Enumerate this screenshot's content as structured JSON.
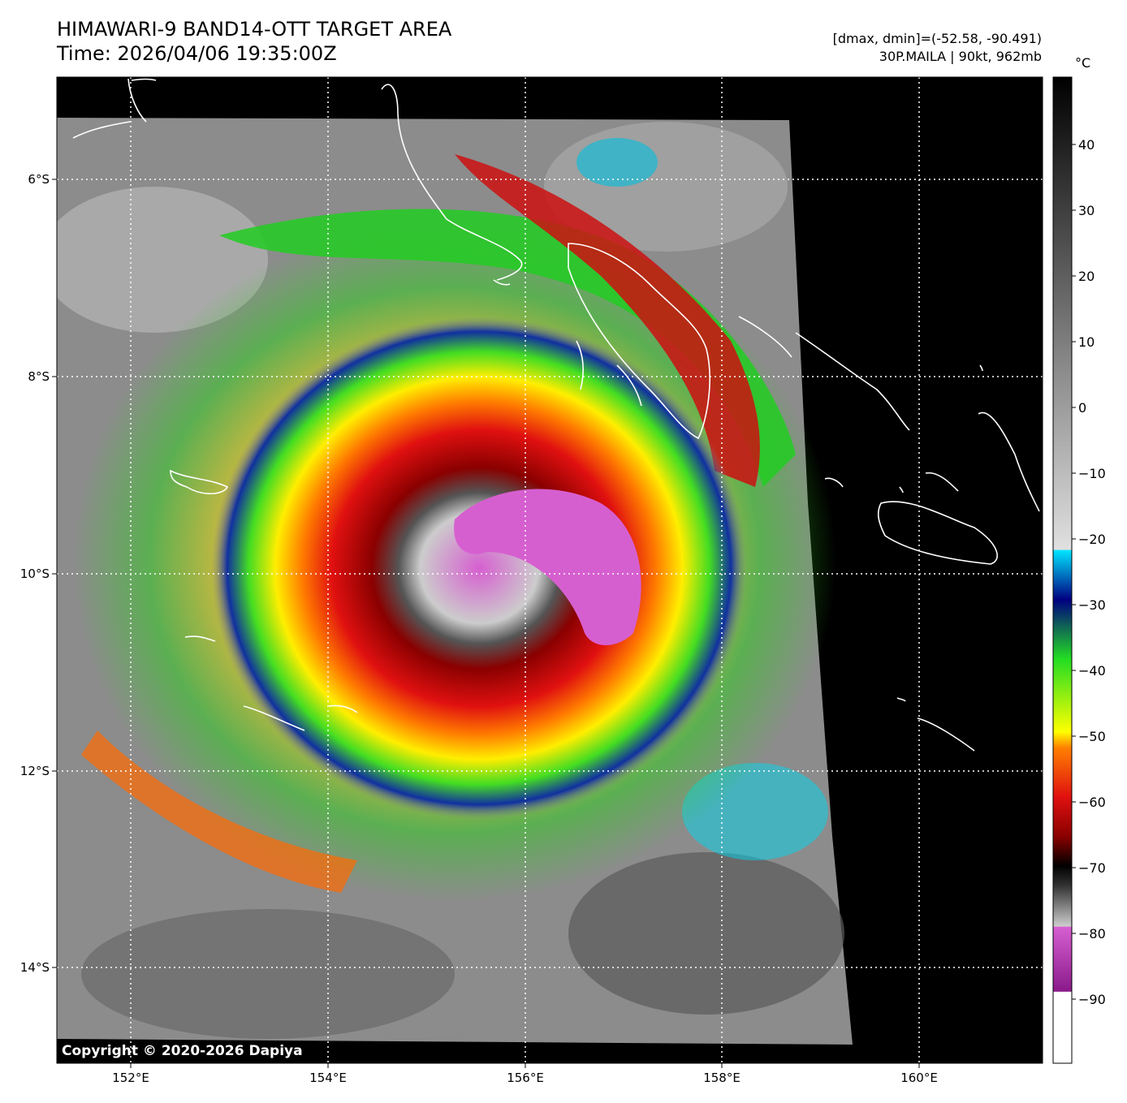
{
  "header": {
    "title_line1": "HIMAWARI-9 BAND14-OTT TARGET AREA",
    "title_line2": "Time: 2026/04/06 19:35:00Z",
    "meta_line1": "[dmax, dmin]=(-52.58, -90.491)",
    "meta_line2": "30P.MAILA | 90kt, 962mb"
  },
  "map": {
    "lon_ticks": [
      "152°E",
      "154°E",
      "156°E",
      "158°E",
      "160°E"
    ],
    "lat_ticks": [
      "6°S",
      "8°S",
      "10°S",
      "12°S",
      "14°S"
    ],
    "copyright": "Copyright © 2020-2026 Dapiya",
    "grid": true,
    "coastline_color": "#ffffff"
  },
  "colorbar": {
    "unit": "°C",
    "ticks": [
      "40",
      "30",
      "20",
      "10",
      "0",
      "−10",
      "−20",
      "−30",
      "−40",
      "−50",
      "−60",
      "−70",
      "−80",
      "−90"
    ],
    "colors": {
      "white": "#ffffff",
      "magenta": "#d65fd0",
      "purple": "#8a1a8a",
      "black": "#000000",
      "dark_red": "#6b0000",
      "red": "#e01010",
      "orange": "#ff8000",
      "yellow": "#ffff00",
      "green": "#22dd22",
      "dark_blue": "#000080",
      "cyan": "#00e5ff",
      "light_gray": "#e0e0e0"
    }
  }
}
